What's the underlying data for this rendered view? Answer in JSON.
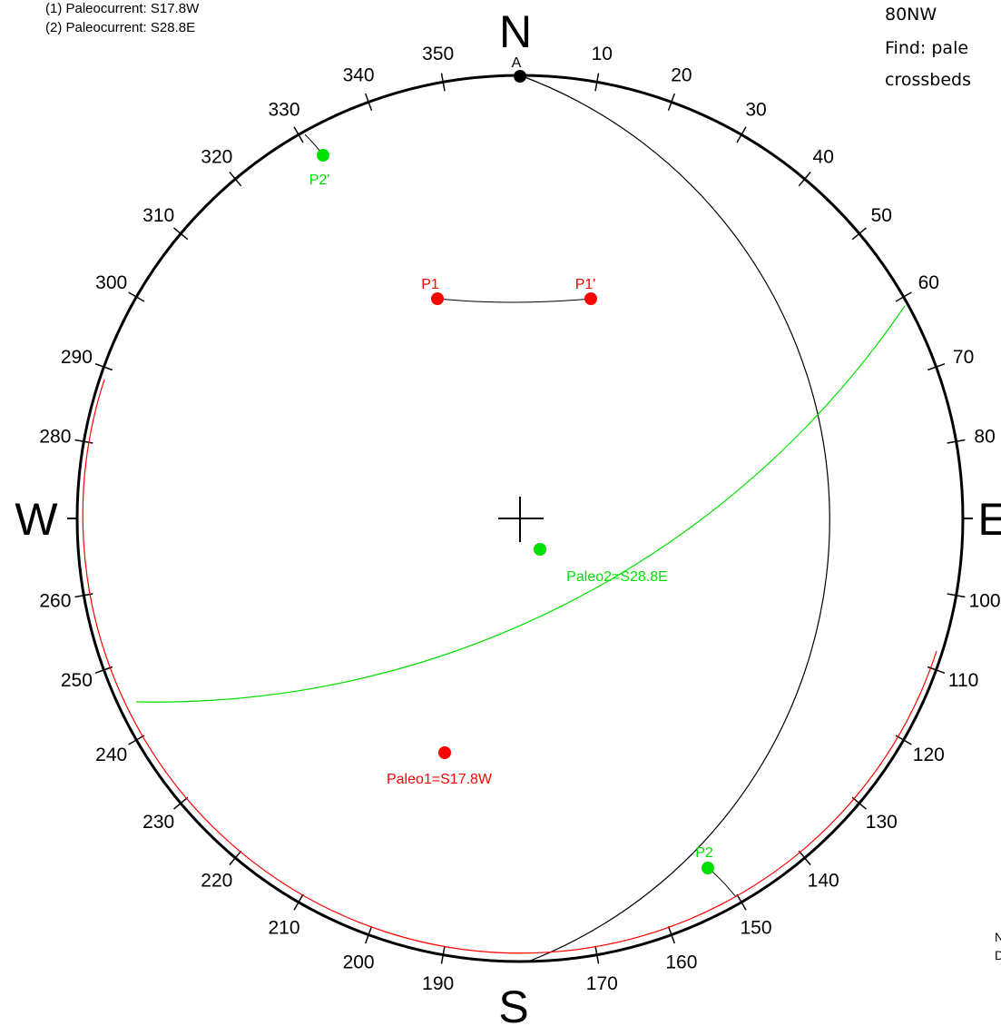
{
  "legend": {
    "lines": [
      "(1) Paleocurrent: S17.8W",
      "(2) Paleocurrent: S28.8E"
    ]
  },
  "notes": {
    "lines": [
      "80NW",
      "Find: pale",
      "crossbeds"
    ]
  },
  "corner_text": {
    "lines": [
      "N",
      "D"
    ]
  },
  "compass": {
    "north": "N",
    "south": "S",
    "east": "E",
    "west": "W",
    "ticks": [
      "10",
      "20",
      "30",
      "40",
      "50",
      "60",
      "70",
      "80",
      "100",
      "110",
      "120",
      "130",
      "140",
      "150",
      "160",
      "170",
      "190",
      "200",
      "210",
      "220",
      "230",
      "240",
      "250",
      "260",
      "280",
      "290",
      "300",
      "310",
      "320",
      "330",
      "340",
      "350"
    ]
  },
  "points": {
    "A": {
      "label": "A",
      "color": "#000000"
    },
    "P1": {
      "label": "P1",
      "color": "#ff0000"
    },
    "P1_prime": {
      "label": "P1'",
      "color": "#ff0000"
    },
    "P2": {
      "label": "P2",
      "color": "#00e000"
    },
    "P2_prime": {
      "label": "P2'",
      "color": "#00e000"
    },
    "paleo1": {
      "label": "Paleo1=S17.8W",
      "color": "#ff0000"
    },
    "paleo2": {
      "label": "Paleo2=S28.8E",
      "color": "#00e000"
    }
  },
  "colors": {
    "bedding": "#000000",
    "crossbed1": "#ff0000",
    "crossbed2": "#00e000"
  }
}
